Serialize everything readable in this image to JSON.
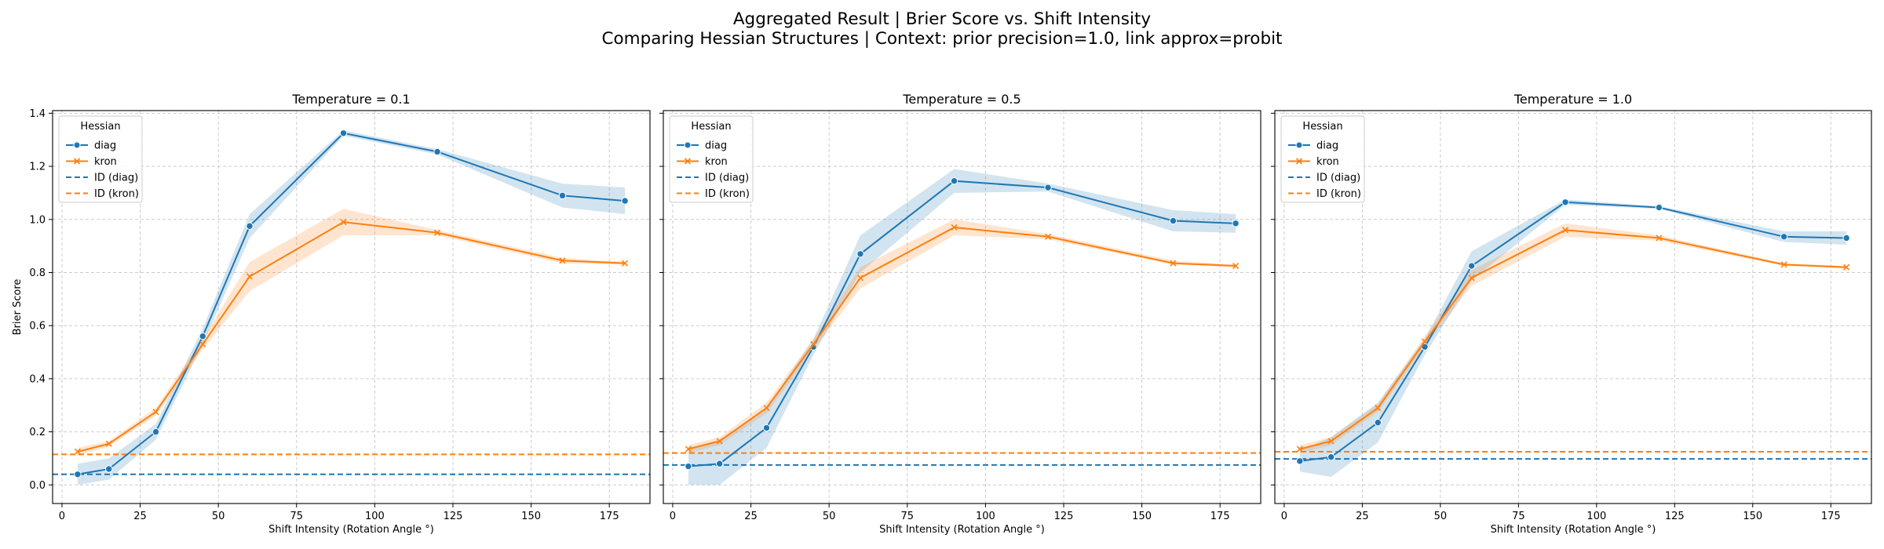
{
  "figure": {
    "title_line1": "Aggregated Result | Brier Score vs. Shift Intensity",
    "title_line2": "Comparing Hessian Structures | Context: prior precision=1.0, link approx=probit"
  },
  "legend": {
    "title": "Hessian",
    "entries": [
      {
        "label": "diag",
        "style": "solid-circle",
        "color": "#1f77b4"
      },
      {
        "label": "kron",
        "style": "solid-x",
        "color": "#ff7f0e"
      },
      {
        "label": "ID (diag)",
        "style": "dashed",
        "color": "#1f77b4"
      },
      {
        "label": "ID (kron)",
        "style": "dashed",
        "color": "#ff7f0e"
      }
    ],
    "placement": "upper-left"
  },
  "colors": {
    "diag": "#1f77b4",
    "kron": "#ff7f0e",
    "grid": "#cccccc"
  },
  "chart_data": [
    {
      "type": "line",
      "title": "Temperature = 0.1",
      "xlabel": "Shift Intensity (Rotation Angle °)",
      "ylabel": "Brier Score",
      "xlim": [
        -3,
        188
      ],
      "ylim": [
        -0.07,
        1.41
      ],
      "xticks": [
        "0",
        "25",
        "50",
        "75",
        "100",
        "125",
        "150",
        "175"
      ],
      "yticks": [
        "0.0",
        "0.2",
        "0.4",
        "0.6",
        "0.8",
        "1.0",
        "1.2",
        "1.4"
      ],
      "grid": true,
      "x": [
        5,
        15,
        30,
        45,
        60,
        90,
        120,
        160,
        180
      ],
      "series": [
        {
          "name": "diag",
          "values": [
            0.04,
            0.06,
            0.2,
            0.56,
            0.975,
            1.325,
            1.255,
            1.09,
            1.07
          ],
          "ci_low": [
            0.0,
            0.02,
            0.17,
            0.53,
            0.93,
            1.315,
            1.245,
            1.045,
            1.02
          ],
          "ci_high": [
            0.08,
            0.1,
            0.23,
            0.59,
            1.02,
            1.335,
            1.265,
            1.135,
            1.12
          ]
        },
        {
          "name": "kron",
          "values": [
            0.125,
            0.155,
            0.275,
            0.53,
            0.785,
            0.99,
            0.95,
            0.845,
            0.835
          ],
          "ci_low": [
            0.11,
            0.145,
            0.26,
            0.51,
            0.73,
            0.94,
            0.94,
            0.835,
            0.83
          ],
          "ci_high": [
            0.14,
            0.165,
            0.29,
            0.55,
            0.84,
            1.04,
            0.96,
            0.855,
            0.84
          ]
        },
        {
          "name": "ID (diag)",
          "reference": 0.04
        },
        {
          "name": "ID (kron)",
          "reference": 0.115
        }
      ]
    },
    {
      "type": "line",
      "title": "Temperature = 0.5",
      "xlabel": "Shift Intensity (Rotation Angle °)",
      "ylabel": "",
      "xlim": [
        -3,
        188
      ],
      "ylim": [
        -0.07,
        1.41
      ],
      "xticks": [
        "0",
        "25",
        "50",
        "75",
        "100",
        "125",
        "150",
        "175"
      ],
      "yticks": [],
      "grid": true,
      "x": [
        5,
        15,
        30,
        45,
        60,
        90,
        120,
        160,
        180
      ],
      "series": [
        {
          "name": "diag",
          "values": [
            0.07,
            0.08,
            0.215,
            0.52,
            0.87,
            1.145,
            1.12,
            0.995,
            0.985
          ],
          "ci_low": [
            0.0,
            0.0,
            0.14,
            0.49,
            0.8,
            1.1,
            1.105,
            0.955,
            0.95
          ],
          "ci_high": [
            0.14,
            0.17,
            0.29,
            0.55,
            0.94,
            1.19,
            1.135,
            1.035,
            1.02
          ]
        },
        {
          "name": "kron",
          "values": [
            0.135,
            0.165,
            0.29,
            0.53,
            0.78,
            0.97,
            0.935,
            0.835,
            0.825
          ],
          "ci_low": [
            0.12,
            0.15,
            0.27,
            0.51,
            0.74,
            0.94,
            0.925,
            0.83,
            0.82
          ],
          "ci_high": [
            0.15,
            0.18,
            0.31,
            0.55,
            0.82,
            1.0,
            0.945,
            0.845,
            0.83
          ]
        },
        {
          "name": "ID (diag)",
          "reference": 0.075
        },
        {
          "name": "ID (kron)",
          "reference": 0.12
        }
      ]
    },
    {
      "type": "line",
      "title": "Temperature = 1.0",
      "xlabel": "Shift Intensity (Rotation Angle °)",
      "ylabel": "",
      "xlim": [
        -3,
        188
      ],
      "ylim": [
        -0.07,
        1.41
      ],
      "xticks": [
        "0",
        "25",
        "50",
        "75",
        "100",
        "125",
        "150",
        "175"
      ],
      "yticks": [],
      "grid": true,
      "x": [
        5,
        15,
        30,
        45,
        60,
        90,
        120,
        160,
        180
      ],
      "series": [
        {
          "name": "diag",
          "values": [
            0.09,
            0.105,
            0.235,
            0.52,
            0.825,
            1.065,
            1.045,
            0.935,
            0.93
          ],
          "ci_low": [
            0.05,
            0.03,
            0.16,
            0.49,
            0.77,
            1.055,
            1.04,
            0.915,
            0.905
          ],
          "ci_high": [
            0.13,
            0.18,
            0.31,
            0.55,
            0.88,
            1.075,
            1.05,
            0.955,
            0.955
          ]
        },
        {
          "name": "kron",
          "values": [
            0.135,
            0.165,
            0.29,
            0.54,
            0.78,
            0.96,
            0.93,
            0.83,
            0.82
          ],
          "ci_low": [
            0.12,
            0.15,
            0.275,
            0.52,
            0.75,
            0.935,
            0.92,
            0.825,
            0.815
          ],
          "ci_high": [
            0.15,
            0.18,
            0.305,
            0.56,
            0.81,
            0.985,
            0.94,
            0.835,
            0.825
          ]
        },
        {
          "name": "ID (diag)",
          "reference": 0.098
        },
        {
          "name": "ID (kron)",
          "reference": 0.125
        }
      ]
    }
  ]
}
